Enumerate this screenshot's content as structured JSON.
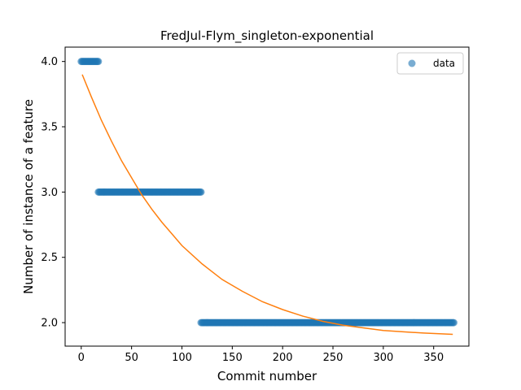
{
  "chart_data": {
    "type": "scatter",
    "title": "FredJul-Flym_singleton-exponential",
    "xlabel": "Commit number",
    "ylabel": "Number of instance of a feature",
    "xlim": [
      -16,
      385
    ],
    "ylim": [
      1.82,
      4.11
    ],
    "xticks": [
      0,
      50,
      100,
      150,
      200,
      250,
      300,
      350
    ],
    "yticks": [
      2.0,
      2.5,
      3.0,
      3.5,
      4.0
    ],
    "ytick_labels": [
      "2.0",
      "2.5",
      "3.0",
      "3.5",
      "4.0"
    ],
    "legend": {
      "position": "top-right",
      "entries": [
        "data"
      ]
    },
    "grid": false,
    "colors": {
      "data": "#1f77b4",
      "fit": "#ff7f0e"
    },
    "series": [
      {
        "name": "data",
        "kind": "points",
        "segments": [
          {
            "x_start": 0,
            "x_end": 17,
            "y": 4.0
          },
          {
            "x_start": 17,
            "x_end": 119,
            "y": 3.0
          },
          {
            "x_start": 119,
            "x_end": 370,
            "y": 2.0
          }
        ]
      },
      {
        "kind": "line",
        "x": [
          1,
          10,
          20,
          30,
          40,
          50,
          60,
          70,
          80,
          90,
          100,
          120,
          140,
          160,
          180,
          200,
          220,
          240,
          260,
          280,
          300,
          320,
          340,
          369
        ],
        "y": [
          3.9,
          3.73,
          3.55,
          3.39,
          3.24,
          3.11,
          2.98,
          2.87,
          2.77,
          2.68,
          2.59,
          2.45,
          2.33,
          2.24,
          2.16,
          2.1,
          2.05,
          2.01,
          1.98,
          1.96,
          1.94,
          1.93,
          1.92,
          1.91
        ]
      }
    ]
  }
}
